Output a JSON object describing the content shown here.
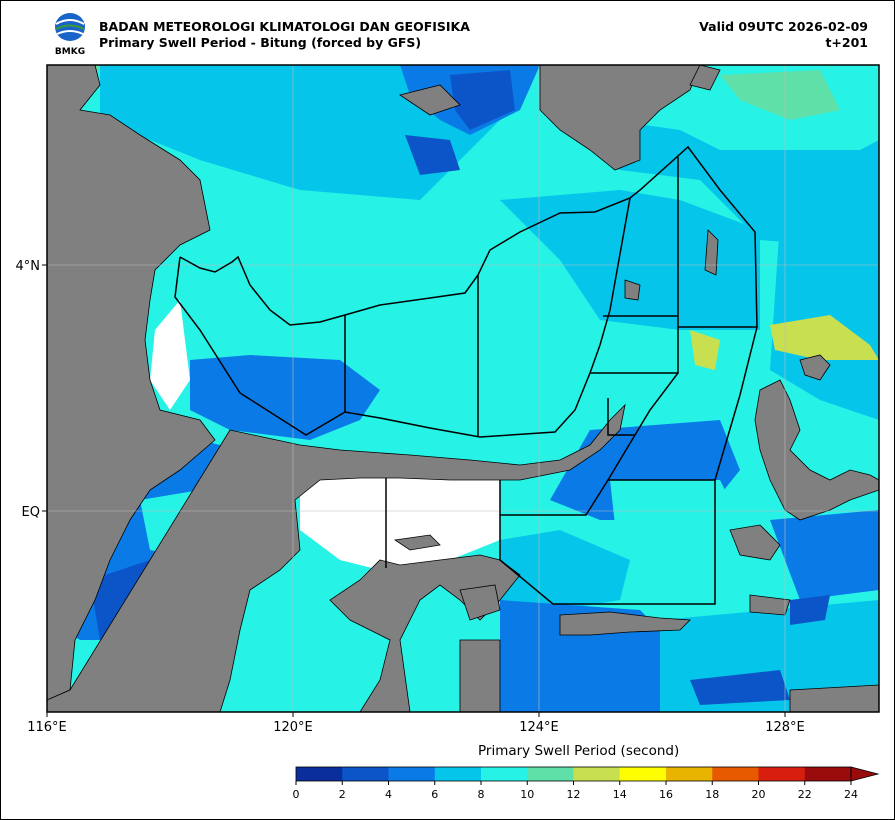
{
  "header": {
    "agency": "BADAN METEOROLOGI KLIMATOLOGI DAN GEOFISIKA",
    "product": "Primary Swell Period - Bitung (forced by GFS)",
    "valid": "Valid 09UTC 2026-02-09",
    "lead": "t+201",
    "logo_text": "BMKG"
  },
  "map": {
    "lon_ticks": [
      "116°E",
      "120°E",
      "124°E",
      "128°E"
    ],
    "lat_ticks": [
      "4°N",
      "EQ"
    ],
    "land_color": "#808080",
    "gridlines": true
  },
  "colorbar": {
    "title": "Primary Swell Period (second)",
    "ticks": [
      "0",
      "2",
      "4",
      "6",
      "8",
      "10",
      "12",
      "14",
      "16",
      "18",
      "20",
      "22",
      "24"
    ],
    "colors": [
      "#0a2f9c",
      "#0b55c8",
      "#0a7ae6",
      "#05c6ea",
      "#26f2e6",
      "#5fe0a8",
      "#c8e050",
      "#fefe00",
      "#e8b400",
      "#e85a00",
      "#d81f0f",
      "#9a0c0c"
    ],
    "extend": "max"
  }
}
